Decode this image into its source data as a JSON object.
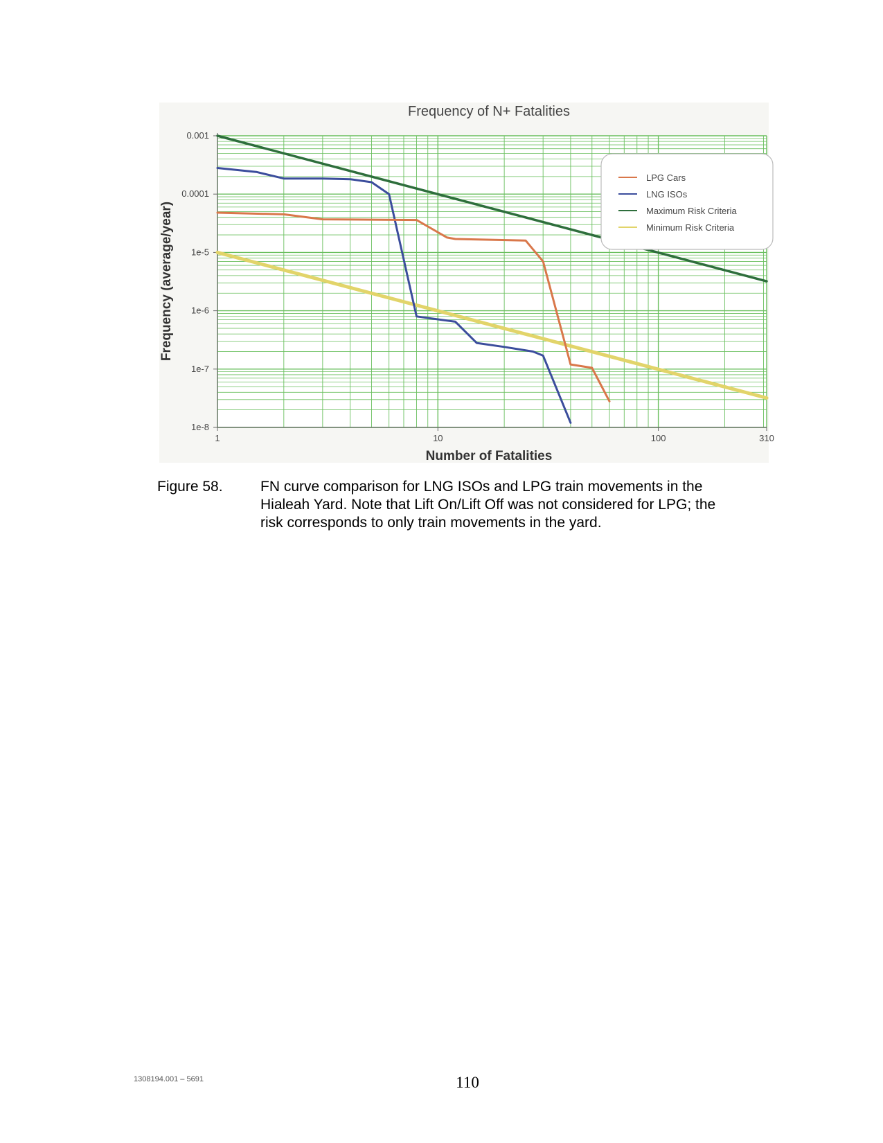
{
  "chart_data": {
    "type": "line",
    "title": "Frequency of N+ Fatalities",
    "xlabel": "Number of Fatalities",
    "ylabel": "Frequency (average/year)",
    "x_scale": "log",
    "y_scale": "log",
    "xlim": [
      1,
      310
    ],
    "ylim": [
      1e-08,
      0.001
    ],
    "x_ticks": [
      {
        "v": 1,
        "label": "1"
      },
      {
        "v": 10,
        "label": "10"
      },
      {
        "v": 100,
        "label": "100"
      },
      {
        "v": 310,
        "label": "310"
      }
    ],
    "y_ticks": [
      {
        "v": 0.001,
        "label": "0.001"
      },
      {
        "v": 0.0001,
        "label": "0.0001"
      },
      {
        "v": 1e-05,
        "label": "1e-5"
      },
      {
        "v": 1e-06,
        "label": "1e-6"
      },
      {
        "v": 1e-07,
        "label": "1e-7"
      },
      {
        "v": 1e-08,
        "label": "1e-8"
      }
    ],
    "grid": true,
    "grid_color": "#6abf5e",
    "legend_position": "top-right",
    "series": [
      {
        "name": "LPG Cars",
        "color": "#d9774a",
        "width": 3,
        "points": [
          [
            1,
            4.8e-05
          ],
          [
            2,
            4.5e-05
          ],
          [
            3,
            3.7e-05
          ],
          [
            8,
            3.6e-05
          ],
          [
            11,
            1.8e-05
          ],
          [
            12,
            1.7e-05
          ],
          [
            25,
            1.6e-05
          ],
          [
            30,
            7e-06
          ],
          [
            40,
            1.2e-07
          ],
          [
            50,
            1.05e-07
          ],
          [
            60,
            2.8e-08
          ]
        ]
      },
      {
        "name": "LNG ISOs",
        "color": "#3b4d9c",
        "width": 3,
        "points": [
          [
            1,
            0.00028
          ],
          [
            1.5,
            0.00024
          ],
          [
            2,
            0.000185
          ],
          [
            3,
            0.000185
          ],
          [
            4,
            0.00018
          ],
          [
            5,
            0.00016
          ],
          [
            6,
            0.0001
          ],
          [
            8,
            8e-07
          ],
          [
            12,
            6.5e-07
          ],
          [
            15,
            2.8e-07
          ],
          [
            20,
            2.4e-07
          ],
          [
            27,
            2e-07
          ],
          [
            30,
            1.7e-07
          ],
          [
            40,
            1.2e-08
          ]
        ]
      },
      {
        "name": "Maximum Risk Criteria",
        "color": "#2e6e3c",
        "width": 3.5,
        "points": [
          [
            1,
            0.001
          ],
          [
            310,
            3.2e-06
          ]
        ]
      },
      {
        "name": "Minimum Risk Criteria",
        "color": "#e2d46a",
        "width": 5,
        "points": [
          [
            1,
            1e-05
          ],
          [
            310,
            3.2e-08
          ]
        ]
      }
    ]
  },
  "caption": {
    "label": "Figure 58.",
    "lines": [
      "FN curve comparison for LNG ISOs and LPG train movements in the",
      "Hialeah Yard. Note that Lift On/Lift Off was not considered for LPG; the",
      "risk corresponds to only train movements in the yard."
    ]
  },
  "footer": {
    "doc_id": "1308194.001 – 5691",
    "page_number": "110"
  }
}
